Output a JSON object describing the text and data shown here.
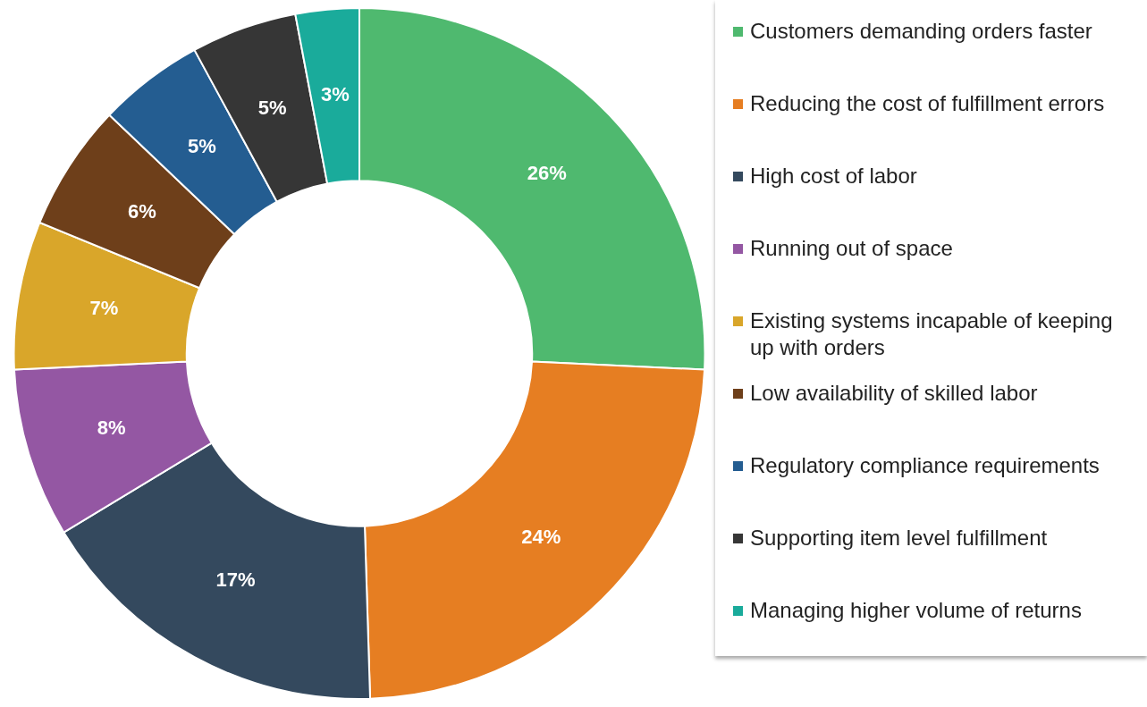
{
  "chart_data": {
    "type": "donut",
    "categories": [
      "Customers demanding orders faster",
      "Reducing the cost of fulfillment errors",
      "High cost of labor",
      "Running out of space",
      "Existing systems incapable of keeping up with orders",
      "Low availability of skilled labor",
      "Regulatory compliance requirements",
      "Supporting item level fulfillment",
      "Managing higher volume of returns"
    ],
    "values": [
      26,
      24,
      17,
      8,
      7,
      6,
      5,
      5,
      3
    ],
    "colors": [
      "#4fb96f",
      "#e67e22",
      "#34495e",
      "#9457a3",
      "#d9a62a",
      "#6e3f1a",
      "#245d91",
      "#363636",
      "#1aab9b"
    ],
    "value_labels": [
      "26%",
      "24%",
      "17%",
      "8%",
      "7%",
      "6%",
      "5%",
      "5%",
      "3%"
    ],
    "legend": "right"
  }
}
